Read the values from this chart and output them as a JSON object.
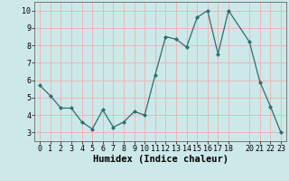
{
  "x": [
    0,
    1,
    2,
    3,
    4,
    5,
    6,
    7,
    8,
    9,
    10,
    11,
    12,
    13,
    14,
    15,
    16,
    17,
    18,
    20,
    21,
    22,
    23
  ],
  "y": [
    5.7,
    5.1,
    4.4,
    4.4,
    3.6,
    3.2,
    4.3,
    3.3,
    3.6,
    4.2,
    4.0,
    6.3,
    8.5,
    8.35,
    7.9,
    9.6,
    10.0,
    7.5,
    10.0,
    8.2,
    5.9,
    4.5,
    3.0
  ],
  "line_color": "#2d6e6e",
  "marker": "D",
  "marker_size": 2.0,
  "bg_color": "#cde8e8",
  "grid_color": "#e8b8b8",
  "xlabel": "Humidex (Indice chaleur)",
  "xlim": [
    -0.5,
    23.5
  ],
  "ylim": [
    2.5,
    10.5
  ],
  "yticks": [
    3,
    4,
    5,
    6,
    7,
    8,
    9,
    10
  ],
  "xticks": [
    0,
    1,
    2,
    3,
    4,
    5,
    6,
    7,
    8,
    9,
    10,
    11,
    12,
    13,
    14,
    15,
    16,
    17,
    18,
    20,
    21,
    22,
    23
  ],
  "tick_fontsize": 6.0,
  "xlabel_fontsize": 7.5
}
